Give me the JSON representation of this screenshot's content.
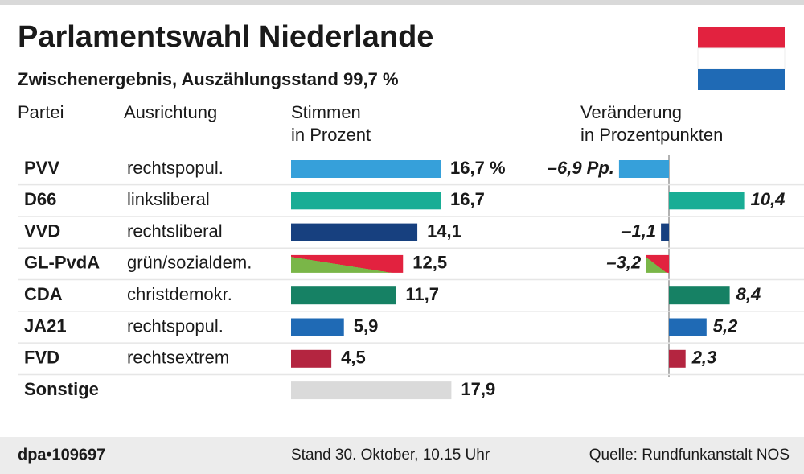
{
  "title": "Parlamentswahl Niederlande",
  "subtitle": "Zwischenergebnis, Auszählungsstand 99,7 %",
  "column_headers": {
    "party": "Partei",
    "orientation": "Ausrichtung"
  },
  "orientations": [
    "rechtspopul.",
    "linksliberal",
    "rechtsliberal",
    "grün/sozialdem.",
    "christdemokr.",
    "rechtspopul.",
    "rechtsextrem",
    null
  ],
  "chart_data": [
    {
      "type": "bar",
      "title": [
        "Stimmen",
        "in Prozent"
      ],
      "categories": [
        "PVV",
        "D66",
        "VVD",
        "GL-PvdA",
        "CDA",
        "JA21",
        "FVD",
        "Sonstige"
      ],
      "values": [
        16.7,
        16.7,
        14.1,
        12.5,
        11.7,
        5.9,
        4.5,
        17.9
      ],
      "value_labels": [
        "16,7 %",
        "16,7",
        "14,1",
        "12,5",
        "11,7",
        "5,9",
        "4,5",
        "17,9"
      ],
      "colors": [
        "#36a0da",
        "#19ad95",
        "#17407f",
        [
          "#7ab648",
          "#e2223f"
        ],
        "#168164",
        "#1f6ab5",
        "#b42540",
        "#dadada"
      ]
    },
    {
      "type": "diverging-bar",
      "title": [
        "Veränderung",
        "in Prozentpunkten"
      ],
      "values": [
        -6.9,
        10.4,
        -1.1,
        -3.2,
        8.4,
        5.2,
        2.3,
        null
      ],
      "value_labels": [
        "–6,9 Pp.",
        "10,4",
        "–1,1",
        "–3,2",
        "8,4",
        "5,2",
        "2,3",
        null
      ],
      "colors": [
        "#36a0da",
        "#19ad95",
        "#17407f",
        [
          "#7ab648",
          "#e2223f"
        ],
        "#168164",
        "#1f6ab5",
        "#b42540",
        "#dadada"
      ]
    }
  ],
  "footer": {
    "id": "dpa•109697",
    "date": "Stand 30. Oktober, 10.15 Uhr",
    "source": "Quelle: Rundfunkanstalt NOS"
  }
}
